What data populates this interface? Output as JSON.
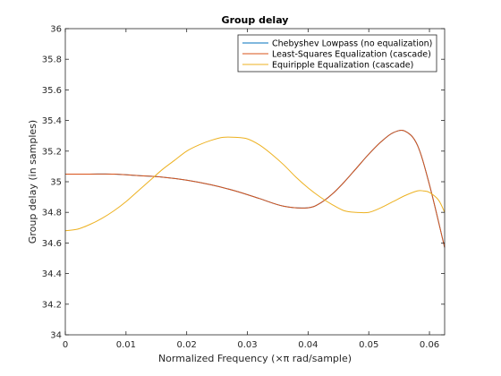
{
  "chart_data": {
    "type": "line",
    "title": "Group delay",
    "xlabel": "Normalized Frequency (×π rad/sample)",
    "ylabel": "Group delay (in samples)",
    "xlim": [
      0,
      0.0625
    ],
    "ylim": [
      34,
      36
    ],
    "xticks": [
      0,
      0.01,
      0.02,
      0.03,
      0.04,
      0.05,
      0.06
    ],
    "yticks": [
      34,
      34.2,
      34.4,
      34.6,
      34.8,
      35,
      35.2,
      35.4,
      35.6,
      35.8,
      36
    ],
    "xtick_labels": [
      "0",
      "0.01",
      "0.02",
      "0.03",
      "0.04",
      "0.05",
      "0.06"
    ],
    "ytick_labels": [
      "34",
      "34.2",
      "34.4",
      "34.6",
      "34.8",
      "35",
      "35.2",
      "35.4",
      "35.6",
      "35.8",
      "36"
    ],
    "grid": false,
    "legend_position": "top-right",
    "series": [
      {
        "name": "Chebyshev Lowpass (no equalization)",
        "color": "#0072BD",
        "x": [
          0,
          0.004,
          0.008,
          0.012,
          0.016,
          0.02,
          0.024,
          0.028,
          0.032,
          0.036,
          0.04,
          0.042,
          0.044,
          0.046,
          0.048,
          0.05,
          0.052,
          0.054,
          0.056,
          0.058,
          0.06,
          0.0625
        ],
        "y": [
          35.05,
          35.05,
          35.05,
          35.04,
          35.03,
          35.01,
          34.98,
          34.94,
          34.89,
          34.84,
          34.83,
          34.86,
          34.92,
          35.0,
          35.09,
          35.18,
          35.26,
          35.32,
          35.33,
          35.24,
          34.98,
          34.57
        ]
      },
      {
        "name": "Least-Squares Equalization (cascade)",
        "color": "#D95319",
        "x": [
          0,
          0.004,
          0.008,
          0.012,
          0.016,
          0.02,
          0.024,
          0.028,
          0.032,
          0.036,
          0.04,
          0.042,
          0.044,
          0.046,
          0.048,
          0.05,
          0.052,
          0.054,
          0.056,
          0.058,
          0.06,
          0.0625
        ],
        "y": [
          35.05,
          35.05,
          35.05,
          35.04,
          35.03,
          35.01,
          34.98,
          34.94,
          34.89,
          34.84,
          34.83,
          34.86,
          34.92,
          35.0,
          35.09,
          35.18,
          35.26,
          35.32,
          35.33,
          35.24,
          34.98,
          34.57
        ]
      },
      {
        "name": "Equiripple Equalization (cascade)",
        "color": "#EDB120",
        "x": [
          0,
          0.002,
          0.004,
          0.006,
          0.008,
          0.01,
          0.012,
          0.014,
          0.016,
          0.018,
          0.02,
          0.022,
          0.024,
          0.026,
          0.028,
          0.03,
          0.032,
          0.034,
          0.036,
          0.038,
          0.04,
          0.042,
          0.044,
          0.046,
          0.048,
          0.05,
          0.052,
          0.054,
          0.056,
          0.058,
          0.059,
          0.06,
          0.0615,
          0.0625
        ],
        "y": [
          34.68,
          34.69,
          34.72,
          34.76,
          34.81,
          34.87,
          34.94,
          35.01,
          35.08,
          35.14,
          35.2,
          35.24,
          35.27,
          35.29,
          35.29,
          35.28,
          35.24,
          35.18,
          35.11,
          35.03,
          34.96,
          34.9,
          34.85,
          34.81,
          34.8,
          34.8,
          34.83,
          34.87,
          34.91,
          34.94,
          34.94,
          34.93,
          34.88,
          34.8
        ]
      }
    ]
  }
}
